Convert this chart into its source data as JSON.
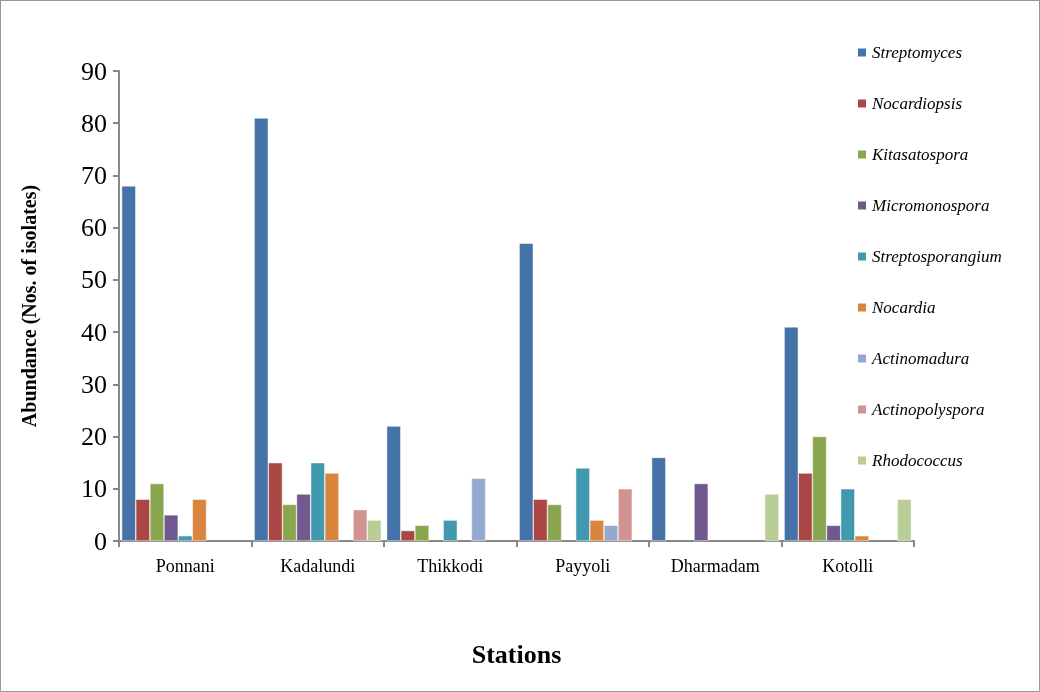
{
  "chart_data": {
    "type": "bar",
    "xlabel": "Stations",
    "ylabel": "Abundance (Nos. of isolates)",
    "categories": [
      "Ponnani",
      "Kadalundi",
      "Thikkodi",
      "Payyoli",
      "Dharmadam",
      "Kotolli"
    ],
    "series": [
      {
        "name": "Streptomyces",
        "color": "#4572a7",
        "values": [
          68,
          81,
          22,
          57,
          16,
          41
        ]
      },
      {
        "name": "Nocardiopsis",
        "color": "#aa4643",
        "values": [
          8,
          15,
          2,
          8,
          null,
          13
        ]
      },
      {
        "name": "Kitasatospora",
        "color": "#89a54e",
        "values": [
          11,
          7,
          3,
          7,
          null,
          20
        ]
      },
      {
        "name": "Micromonospora",
        "color": "#71588f",
        "values": [
          5,
          9,
          null,
          null,
          11,
          3
        ]
      },
      {
        "name": "Streptosporangium",
        "color": "#4198af",
        "values": [
          1,
          15,
          4,
          14,
          null,
          10
        ]
      },
      {
        "name": "Nocardia",
        "color": "#db843d",
        "values": [
          8,
          13,
          null,
          4,
          null,
          1
        ]
      },
      {
        "name": "Actinomadura",
        "color": "#93a9cf",
        "values": [
          null,
          null,
          12,
          3,
          null,
          null
        ]
      },
      {
        "name": "Actinopolyspora",
        "color": "#d19392",
        "values": [
          null,
          6,
          null,
          10,
          null,
          null
        ]
      },
      {
        "name": "Rhodococcus",
        "color": "#b9cd96",
        "values": [
          null,
          4,
          null,
          null,
          9,
          8
        ]
      }
    ],
    "ylim": [
      0,
      90
    ],
    "yticks": [
      0,
      10,
      20,
      30,
      40,
      50,
      60,
      70,
      80,
      90
    ],
    "grid": false,
    "legend": "top right"
  }
}
